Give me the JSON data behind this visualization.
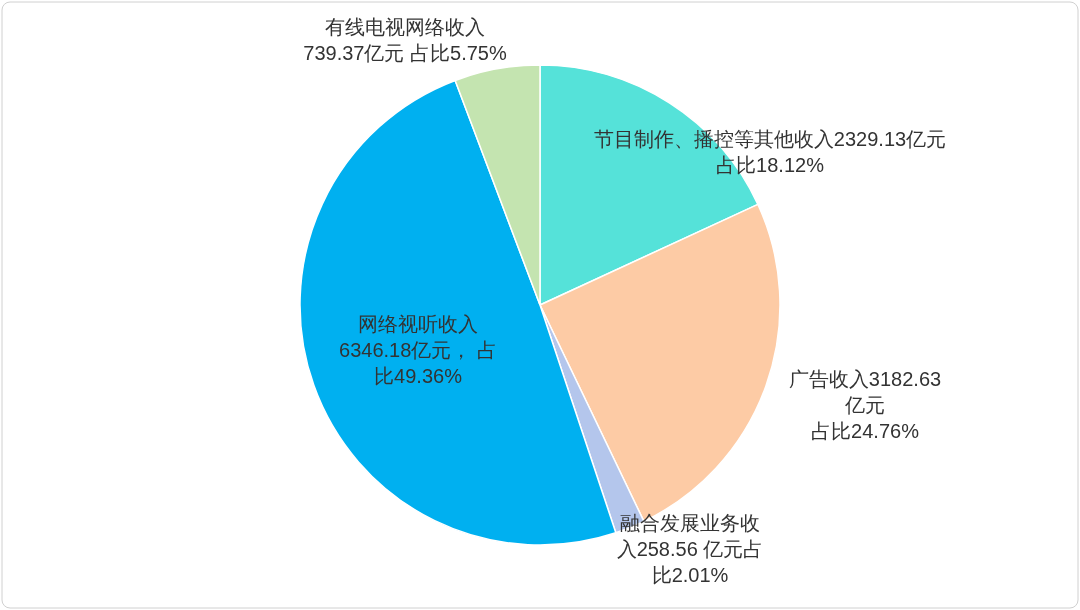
{
  "chart_data": {
    "type": "pie",
    "categories": [
      "节目制作、播控等其他收入",
      "广告收入",
      "融合发展业务收入",
      "网络视听收入",
      "有线电视网络收入"
    ],
    "values": [
      2329.13,
      3182.63,
      258.56,
      6346.18,
      739.37
    ],
    "colors": [
      "#55e2d9",
      "#fdcba5",
      "#b4c6ec",
      "#00b0f0",
      "#c4e4b0"
    ],
    "value_labels": [
      "2329.13亿元占比18.12%",
      "3182.63亿元占比24.76%",
      "258.56 亿元占比2.01%",
      "6346.18亿元， 占比49.36%",
      "739.37亿元 占比5.75%"
    ],
    "legend": false
  }
}
